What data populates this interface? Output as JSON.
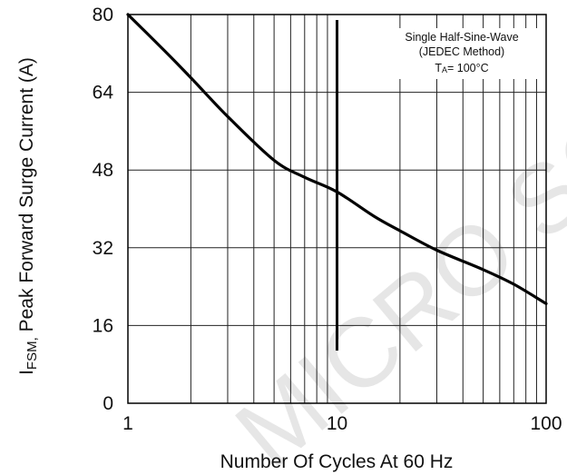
{
  "chart_data": {
    "type": "line",
    "title": "",
    "xlabel": "Number Of  Cycles  At 60 Hz",
    "ylabel": {
      "prefix_main": "I",
      "prefix_sub": "FSM,",
      "text": "Peak  Forward Surge Current (A)"
    },
    "x_scale": "log",
    "xlim": [
      1,
      100
    ],
    "ylim": [
      0,
      80
    ],
    "x_ticks": [
      1,
      10,
      100
    ],
    "x_tick_labels": [
      "1",
      "10",
      "100"
    ],
    "y_ticks": [
      0,
      16,
      32,
      48,
      64,
      80
    ],
    "y_tick_labels": [
      "0",
      "16",
      "32",
      "48",
      "64",
      "80"
    ],
    "grid": true,
    "series": [
      {
        "x": [
          1,
          1.5,
          2,
          3,
          5,
          7,
          10,
          15,
          20,
          30,
          50,
          70,
          100
        ],
        "y": [
          80,
          72.5,
          67,
          59,
          50,
          46.5,
          43.5,
          38.5,
          35.5,
          31.5,
          27.5,
          24.5,
          20.5
        ]
      }
    ],
    "annotations": [
      {
        "text": "Single Half-Sine-Wave"
      },
      {
        "text": "(JEDEC Method)"
      },
      {
        "main": "T",
        "sub": "A",
        "rest": "= 100°C"
      }
    ],
    "watermark": "MICRO SC"
  }
}
